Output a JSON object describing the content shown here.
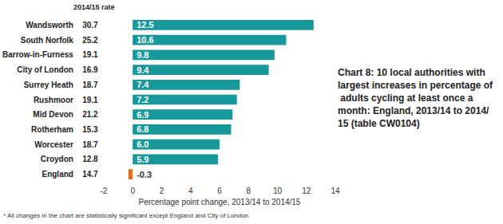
{
  "chart_data": {
    "type": "bar",
    "orientation": "horizontal",
    "title": "Chart 8: 10 local authorities with largest increases in percentage of adults cycling at least once a month: England, 2013/14 to 2014/15 (table CW0104)",
    "categories": [
      "Wandsworth",
      "South Norfolk",
      "Barrow-in-Furness",
      "City of London",
      "Surrey Heath",
      "Rushmoor",
      "Mid Devon",
      "Rotherham",
      "Worcester",
      "Croydon",
      "England"
    ],
    "values": [
      12.5,
      10.6,
      9.8,
      9.4,
      7.4,
      7.2,
      6.9,
      6.8,
      6.0,
      5.9,
      -0.3
    ],
    "value_labels": [
      "12.5",
      "10.6",
      "9.8",
      "9.4",
      "7.4",
      "7.2",
      "6.9",
      "6.8",
      "6.0",
      "5.9",
      "-0.3"
    ],
    "colors": [
      "#17999b",
      "#17999b",
      "#17999b",
      "#17999b",
      "#17999b",
      "#17999b",
      "#17999b",
      "#17999b",
      "#17999b",
      "#17999b",
      "#e0701e"
    ],
    "rate_label": "2014/15 rate",
    "rates": [
      30.7,
      25.2,
      19.1,
      16.9,
      18.7,
      19.1,
      21.2,
      15.3,
      18.7,
      12.8,
      14.7
    ],
    "xlabel": "Percentage point change, 2013/14 to 2014/15",
    "xlim": [
      -2,
      14
    ],
    "xticks": [
      -2,
      0,
      2,
      4,
      6,
      8,
      10,
      12,
      14
    ],
    "footnote": "* All changes in the chart are statistically significant except England and City of London",
    "data_labels": true,
    "grid": false
  }
}
